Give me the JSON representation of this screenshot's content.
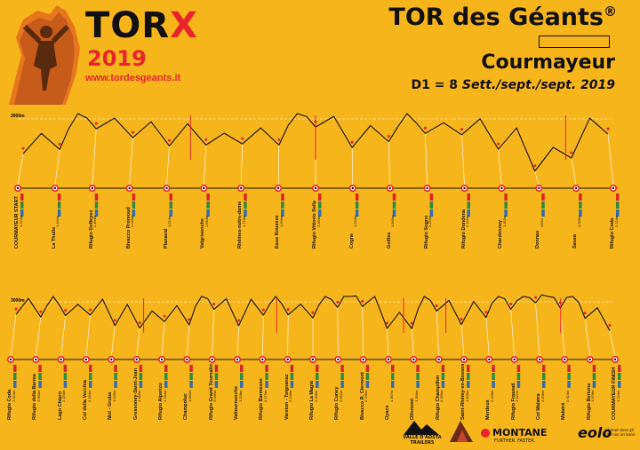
{
  "header": {
    "logo_word": "TOR",
    "logo_x": "X",
    "logo_year": "2019",
    "logo_url": "www.tordesgeants.it",
    "title": "TOR des Géants",
    "title_mark": "®",
    "subtitle": "Courmayeur",
    "date_prefix": "D1 = 8 ",
    "date_text": "Sett./sept./sept. 2019"
  },
  "axis_labels": {
    "top": "3000m",
    "bottom": "3000m"
  },
  "row1": [
    {
      "name": "COURMAYEUR START",
      "alt": "1.224m"
    },
    {
      "name": "La Thuile",
      "alt": "1.441m"
    },
    {
      "name": "Rifugio Deffeyes",
      "alt": "2.494m"
    },
    {
      "name": "Bivacco Promoud",
      "alt": "2.040m"
    },
    {
      "name": "Planaval",
      "alt": "1.624m"
    },
    {
      "name": "Valgrisenche",
      "alt": "1.664m"
    },
    {
      "name": "Rhêmes-notre-dame",
      "alt": "1.723m"
    },
    {
      "name": "Eaux Rousses",
      "alt": "1.666m"
    },
    {
      "name": "Rifugio Vittorio Sella",
      "alt": "2.584m"
    },
    {
      "name": "Cogne",
      "alt": "1.534m"
    },
    {
      "name": "Goilles",
      "alt": "1.840m"
    },
    {
      "name": "Rifugio Sogno",
      "alt": "2.259m"
    },
    {
      "name": "Rifugio Dondena",
      "alt": "2.192m"
    },
    {
      "name": "Chardonney",
      "alt": "1.452m"
    },
    {
      "name": "Donnas",
      "alt": "330m"
    },
    {
      "name": "Sassa",
      "alt": "1.000m"
    },
    {
      "name": "Rifugio Coda",
      "alt": "2.224m"
    }
  ],
  "row2": [
    {
      "name": "Rifugio Coda",
      "alt": "2.224m"
    },
    {
      "name": "Rifugio della Barma",
      "alt": "2.060m"
    },
    {
      "name": "Lago Chiaro",
      "alt": "2.150m"
    },
    {
      "name": "Col della Vecchia",
      "alt": "2.184m"
    },
    {
      "name": "Niel - Gruba",
      "alt": "1.535m"
    },
    {
      "name": "Gressoney-Saint-Jean",
      "alt": "1.385m"
    },
    {
      "name": "Rifugio Alpenzu",
      "alt": "1.784m"
    },
    {
      "name": "Champoluc",
      "alt": "1.580m"
    },
    {
      "name": "Rifugio Grand Tournalin",
      "alt": "2.535m"
    },
    {
      "name": "Valtournenche",
      "alt": "1.528m"
    },
    {
      "name": "Rifugio Barmasse",
      "alt": "2.175m"
    },
    {
      "name": "Vareton - Tsignanaz",
      "alt": "2.200m"
    },
    {
      "name": "Rifugio La Magia",
      "alt": "2.006m"
    },
    {
      "name": "Rifugio Cuney",
      "alt": "2.652m"
    },
    {
      "name": "Bivacco R. Clermont",
      "alt": "2.705m"
    },
    {
      "name": "Oyace",
      "alt": "1.367m"
    },
    {
      "name": "Ollomont",
      "alt": "1.356m"
    },
    {
      "name": "Rifugio Champillon",
      "alt": "2.430m"
    },
    {
      "name": "Saint-Rhémy-en-Bosses",
      "alt": "1.600m"
    },
    {
      "name": "Merdeux",
      "alt": "2.036m"
    },
    {
      "name": "Rifugio Frassati",
      "alt": "2.537m"
    },
    {
      "name": "Col Malatra",
      "alt": "2.936m"
    },
    {
      "name": "Malatrà",
      "alt": "2.610m"
    },
    {
      "name": "Rifugio Bertone",
      "alt": "1.979m"
    },
    {
      "name": "COURMAYEUR FINISH",
      "alt": "1.224m"
    }
  ],
  "sponsors": {
    "s1": "VALLE D'AOSTA TRAILERS",
    "s2": "TOR DES GEANTS",
    "s3": "MONTANE",
    "s3_tag": "FURTHER. FASTER.",
    "s4": "eolo",
    "s4_tag": "internet dove gli altri non arrivano"
  },
  "colors": {
    "background": "#F7B51C",
    "line": "#111111",
    "accent": "#E8242B",
    "info_red": "#D7262B",
    "info_green": "#2E8B3E",
    "info_blue": "#2C6FB5"
  }
}
